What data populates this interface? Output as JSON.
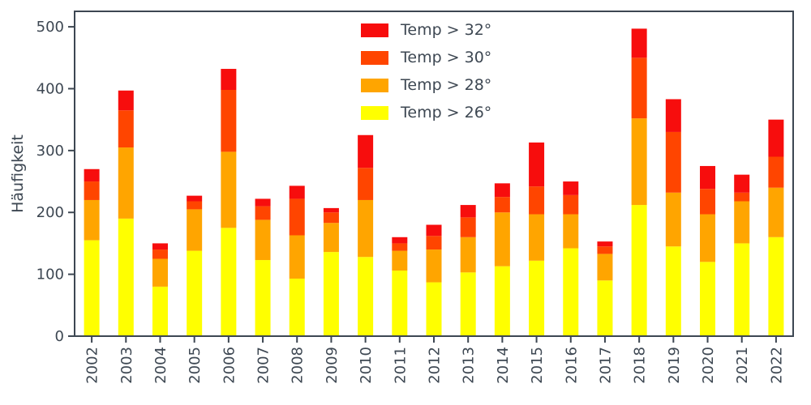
{
  "chart_data": {
    "type": "bar",
    "stacked": true,
    "title": "",
    "xlabel": "",
    "ylabel": "Häufigkeit",
    "ylim": [
      0,
      525
    ],
    "yticks": [
      0,
      100,
      200,
      300,
      400,
      500
    ],
    "grid": false,
    "legend_position": "upper center",
    "categories": [
      "2002",
      "2003",
      "2004",
      "2005",
      "2006",
      "2007",
      "2008",
      "2009",
      "2010",
      "2011",
      "2012",
      "2013",
      "2014",
      "2015",
      "2016",
      "2017",
      "2018",
      "2019",
      "2020",
      "2021",
      "2022"
    ],
    "series": [
      {
        "name": "Temp > 26°",
        "color": "#ffff00",
        "values": [
          155,
          190,
          80,
          138,
          175,
          123,
          93,
          136,
          128,
          106,
          87,
          103,
          113,
          122,
          142,
          90,
          212,
          145,
          120,
          150,
          160
        ]
      },
      {
        "name": "Temp > 28°",
        "color": "#ffa500",
        "values": [
          65,
          115,
          45,
          67,
          123,
          65,
          70,
          47,
          92,
          32,
          53,
          57,
          87,
          75,
          55,
          43,
          140,
          87,
          77,
          68,
          80
        ]
      },
      {
        "name": "Temp > 30°",
        "color": "#ff4500",
        "values": [
          30,
          60,
          15,
          13,
          100,
          22,
          59,
          17,
          52,
          12,
          22,
          32,
          25,
          45,
          31,
          12,
          98,
          98,
          41,
          14,
          50
        ]
      },
      {
        "name": "Temp > 32°",
        "color": "#f70d0d",
        "values": [
          20,
          32,
          10,
          9,
          34,
          12,
          21,
          7,
          53,
          10,
          18,
          20,
          22,
          71,
          22,
          8,
          47,
          53,
          37,
          29,
          60
        ]
      }
    ],
    "legend_order": [
      "Temp > 32°",
      "Temp > 30°",
      "Temp > 28°",
      "Temp > 26°"
    ]
  },
  "style": {
    "text_color": "#3d4752",
    "spine_color": "#3d4752",
    "background": "#ffffff"
  }
}
